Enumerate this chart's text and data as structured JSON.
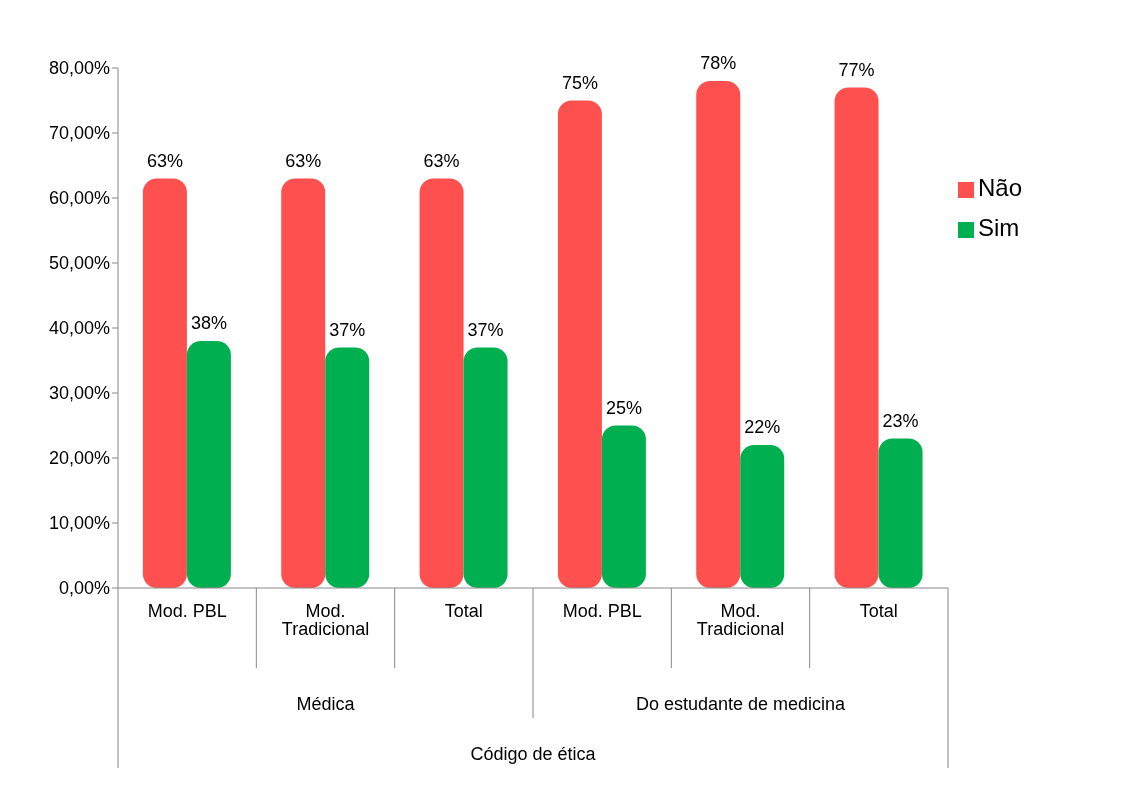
{
  "chart_data": {
    "type": "bar",
    "annotations": [
      "Médica",
      "Do estudante de medicina",
      "Código de ética"
    ],
    "categories": [
      "Mod. PBL",
      "Mod. Tradicional",
      "Total",
      "Mod. PBL",
      "Mod. Tradicional",
      "Total"
    ],
    "series": [
      {
        "name": "Não",
        "color": "#ff5050",
        "values": [
          63,
          63,
          63,
          75,
          78,
          77
        ],
        "value_labels": [
          "63%",
          "63%",
          "63%",
          "75%",
          "78%",
          "77%"
        ]
      },
      {
        "name": "Sim",
        "color": "#00b050",
        "values": [
          38,
          37,
          37,
          25,
          22,
          23
        ],
        "value_labels": [
          "38%",
          "37%",
          "37%",
          "25%",
          "22%",
          "23%"
        ]
      }
    ],
    "ylim": [
      0,
      80
    ],
    "yticks": [
      {
        "value": 0,
        "label": "0,00%"
      },
      {
        "value": 10,
        "label": "10,00%"
      },
      {
        "value": 20,
        "label": "20,00%"
      },
      {
        "value": 30,
        "label": "30,00%"
      },
      {
        "value": 40,
        "label": "40,00%"
      },
      {
        "value": 50,
        "label": "50,00%"
      },
      {
        "value": 60,
        "label": "60,00%"
      },
      {
        "value": 70,
        "label": "70,00%"
      },
      {
        "value": 80,
        "label": "80,00%"
      }
    ],
    "grid": false,
    "legend": "right"
  }
}
